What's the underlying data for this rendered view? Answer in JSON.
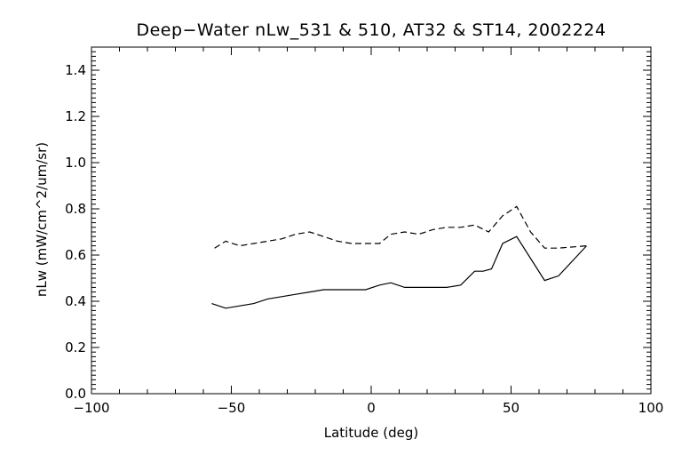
{
  "chart_data": {
    "type": "line",
    "title": "Deep−Water nLw_531 & 510, AT32 & ST14, 2002224",
    "xlabel": "Latitude (deg)",
    "ylabel": "nLw (mW/cm^2/um/sr)",
    "xlim": [
      -100,
      100
    ],
    "ylim": [
      0.0,
      1.5
    ],
    "x_ticks": [
      -100,
      -50,
      0,
      50,
      100
    ],
    "x_tick_labels": [
      "−100",
      "−50",
      "0",
      "50",
      "100"
    ],
    "y_ticks": [
      0.0,
      0.2,
      0.4,
      0.6,
      0.8,
      1.0,
      1.2,
      1.4
    ],
    "y_tick_labels": [
      "0.0",
      "0.2",
      "0.4",
      "0.6",
      "0.8",
      "1.0",
      "1.2",
      "1.4"
    ],
    "grid": false,
    "series": [
      {
        "style": "solid",
        "x": [
          -57,
          -52,
          -47,
          -42,
          -37,
          -32,
          -27,
          -22,
          -17,
          -12,
          -7,
          -2,
          3,
          7,
          12,
          17,
          22,
          27,
          32,
          37,
          40,
          43,
          47,
          52,
          62,
          67,
          77
        ],
        "y": [
          0.39,
          0.37,
          0.38,
          0.39,
          0.41,
          0.42,
          0.43,
          0.44,
          0.45,
          0.45,
          0.45,
          0.45,
          0.47,
          0.48,
          0.46,
          0.46,
          0.46,
          0.46,
          0.47,
          0.53,
          0.53,
          0.54,
          0.65,
          0.68,
          0.49,
          0.51,
          0.64
        ]
      },
      {
        "style": "dashed",
        "x": [
          -56,
          -52,
          -47,
          -42,
          -37,
          -32,
          -27,
          -22,
          -17,
          -12,
          -7,
          -2,
          3,
          7,
          12,
          17,
          22,
          27,
          32,
          37,
          42,
          47,
          52,
          57,
          62,
          67,
          77
        ],
        "y": [
          0.63,
          0.66,
          0.64,
          0.65,
          0.66,
          0.67,
          0.69,
          0.7,
          0.68,
          0.66,
          0.65,
          0.65,
          0.65,
          0.69,
          0.7,
          0.69,
          0.71,
          0.72,
          0.72,
          0.73,
          0.7,
          0.77,
          0.81,
          0.7,
          0.63,
          0.63,
          0.64
        ]
      }
    ]
  }
}
